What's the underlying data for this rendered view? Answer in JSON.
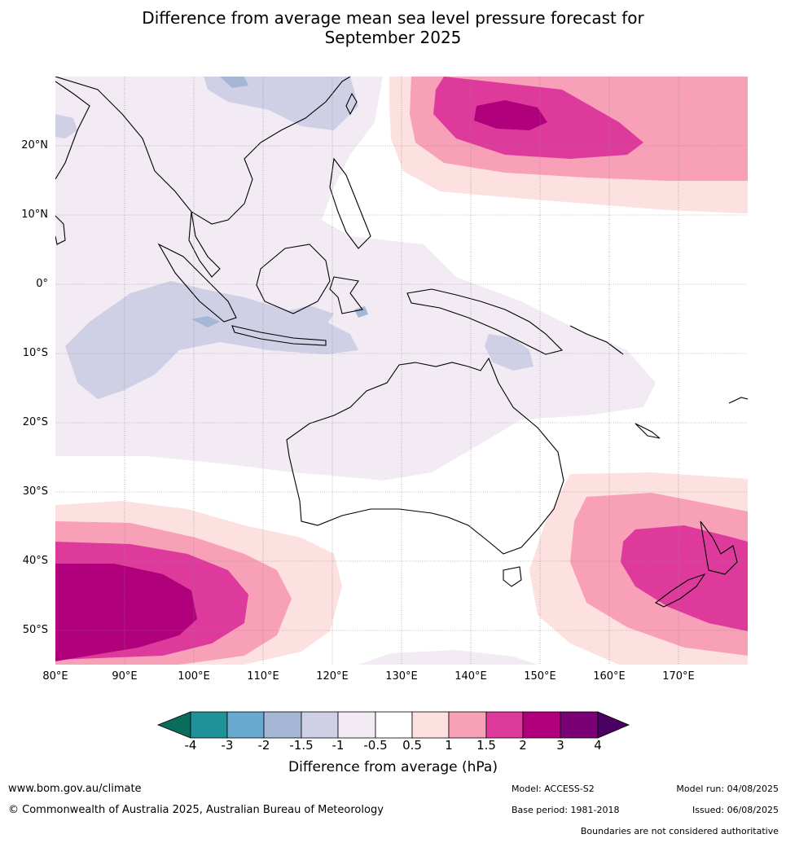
{
  "title_line1": "Difference from average mean sea level pressure forecast for",
  "title_line2": "September 2025",
  "map": {
    "extent": {
      "lon": [
        80,
        180
      ],
      "lat": [
        -55,
        30
      ]
    },
    "lat_labels": [
      "20°N",
      "10°N",
      "0°",
      "10°S",
      "20°S",
      "30°S",
      "40°S",
      "50°S"
    ],
    "lon_labels": [
      "80°E",
      "90°E",
      "100°E",
      "110°E",
      "120°E",
      "130°E",
      "140°E",
      "150°E",
      "160°E",
      "170°E"
    ]
  },
  "colorbar": {
    "ticks": [
      "-4",
      "-3",
      "-2",
      "-1.5",
      "-1",
      "-0.5",
      "0.5",
      "1",
      "1.5",
      "2",
      "3",
      "4"
    ],
    "colors": {
      "below_-4": "#0a6d5c",
      "-4_-3": "#1f9199",
      "-3_-2": "#68a9d0",
      "-2_-1.5": "#a6b7d6",
      "-1.5_-1": "#cfd0e6",
      "-1_-0.5": "#f2ebf4",
      "-0.5_0.5": "#ffffff",
      "0.5_1": "#fde0e0",
      "1_1.5": "#f8a0b8",
      "1.5_2": "#de3a9c",
      "2_3": "#b0007c",
      "3_4": "#7a0075",
      "above_4": "#4a0060"
    },
    "label": "Difference from average (hPa)"
  },
  "footer": {
    "website": "www.bom.gov.au/climate",
    "copyright": "© Commonwealth of Australia 2025, Australian Bureau of Meteorology",
    "model": "Model: ACCESS-S2",
    "base_period": "Base period: 1981-2018",
    "model_run": "Model run: 04/08/2025",
    "issued": "Issued: 06/08/2025",
    "disclaimer": "Boundaries are not considered authoritative"
  }
}
